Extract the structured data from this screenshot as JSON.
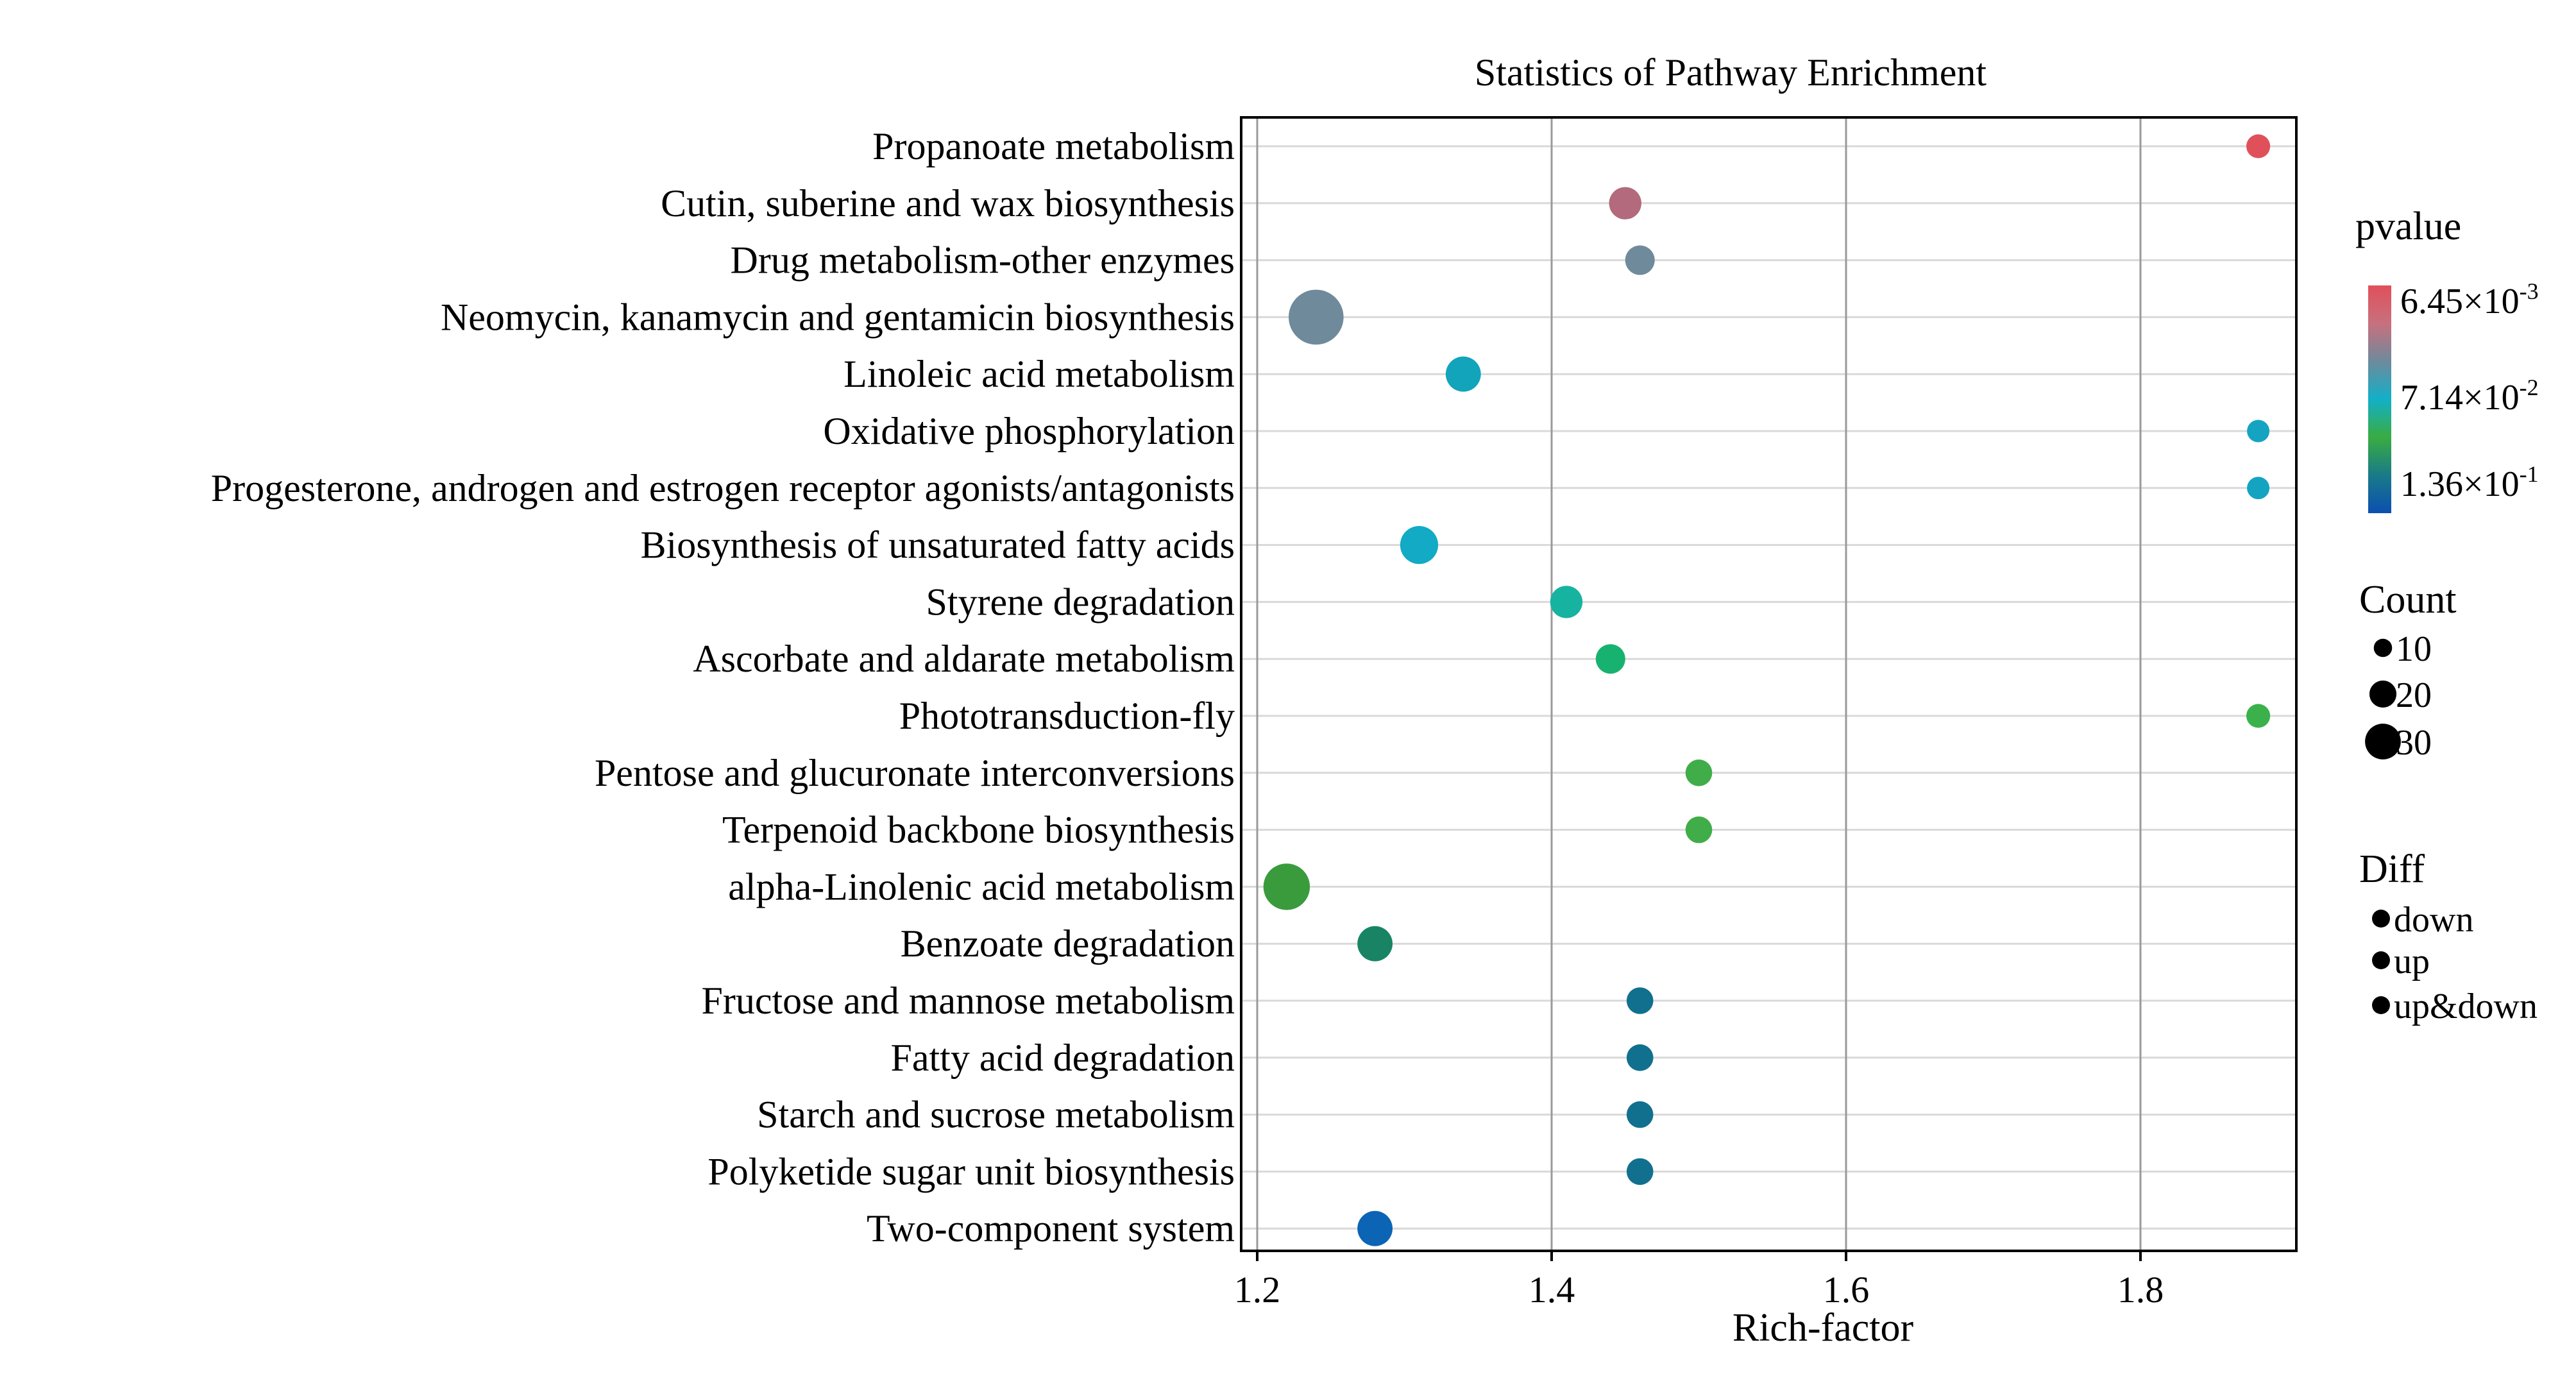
{
  "chart_data": {
    "type": "scatter",
    "title": "Statistics of Pathway Enrichment",
    "xlabel": "Rich-factor",
    "ylabel": "",
    "xlim": [
      1.2,
      1.9
    ],
    "xticks": [
      1.2,
      1.4,
      1.6,
      1.8
    ],
    "xtick_labels": [
      "1.2",
      "1.4",
      "1.6",
      "1.8"
    ],
    "grid": true,
    "legend_position": "right",
    "categories": [
      "Propanoate metabolism",
      "Cutin, suberine and wax biosynthesis",
      "Drug metabolism-other enzymes",
      "Neomycin, kanamycin and gentamicin biosynthesis",
      "Linoleic acid metabolism",
      "Oxidative phosphorylation",
      "Progesterone, androgen and estrogen receptor agonists/antagonists",
      "Biosynthesis of unsaturated fatty acids",
      "Styrene degradation",
      "Ascorbate and aldarate metabolism",
      "Phototransduction-fly",
      "Pentose and glucuronate interconversions",
      "Terpenoid backbone biosynthesis",
      "alpha-Linolenic acid metabolism",
      "Benzoate degradation",
      "Fructose and mannose metabolism",
      "Fatty acid degradation",
      "Starch and sucrose metabolism",
      "Polyketide sugar unit biosynthesis",
      "Two-component system"
    ],
    "points": [
      {
        "x": 1.88,
        "count": 6,
        "color": "#e0505a"
      },
      {
        "x": 1.45,
        "count": 12,
        "color": "#b26a7c"
      },
      {
        "x": 1.46,
        "count": 10,
        "color": "#6f8a9b"
      },
      {
        "x": 1.24,
        "count": 28,
        "color": "#6f8a9b"
      },
      {
        "x": 1.34,
        "count": 14,
        "color": "#12a4bb"
      },
      {
        "x": 1.88,
        "count": 5,
        "color": "#14a4c2"
      },
      {
        "x": 1.88,
        "count": 5,
        "color": "#14a4c2"
      },
      {
        "x": 1.31,
        "count": 16,
        "color": "#12aac4"
      },
      {
        "x": 1.41,
        "count": 12,
        "color": "#16b3a0"
      },
      {
        "x": 1.44,
        "count": 10,
        "color": "#18b270"
      },
      {
        "x": 1.88,
        "count": 6,
        "color": "#3ab14a"
      },
      {
        "x": 1.5,
        "count": 8,
        "color": "#40ad48"
      },
      {
        "x": 1.5,
        "count": 8,
        "color": "#40ad48"
      },
      {
        "x": 1.22,
        "count": 22,
        "color": "#3a9b3c"
      },
      {
        "x": 1.28,
        "count": 14,
        "color": "#188464"
      },
      {
        "x": 1.46,
        "count": 8,
        "color": "#11708e"
      },
      {
        "x": 1.46,
        "count": 8,
        "color": "#11708e"
      },
      {
        "x": 1.46,
        "count": 8,
        "color": "#11708e"
      },
      {
        "x": 1.46,
        "count": 8,
        "color": "#11708e"
      },
      {
        "x": 1.28,
        "count": 14,
        "color": "#0b64b4"
      }
    ]
  },
  "legend": {
    "pvalue": {
      "title": "pvalue",
      "labels": [
        {
          "mant": "6.45×10",
          "exp": "-3"
        },
        {
          "mant": "7.14×10",
          "exp": "-2"
        },
        {
          "mant": "1.36×10",
          "exp": "-1"
        }
      ],
      "gradient": [
        "#e0505a",
        "#c8707e",
        "#6e8a9c",
        "#12b0c8",
        "#3aac42",
        "#1a7a88",
        "#0c4fb0"
      ]
    },
    "count": {
      "title": "Count",
      "items": [
        {
          "label": "10",
          "value": 10
        },
        {
          "label": "20",
          "value": 20
        },
        {
          "label": "30",
          "value": 30
        }
      ]
    },
    "diff": {
      "title": "Diff",
      "items": [
        "down",
        "up",
        "up&down"
      ]
    }
  }
}
